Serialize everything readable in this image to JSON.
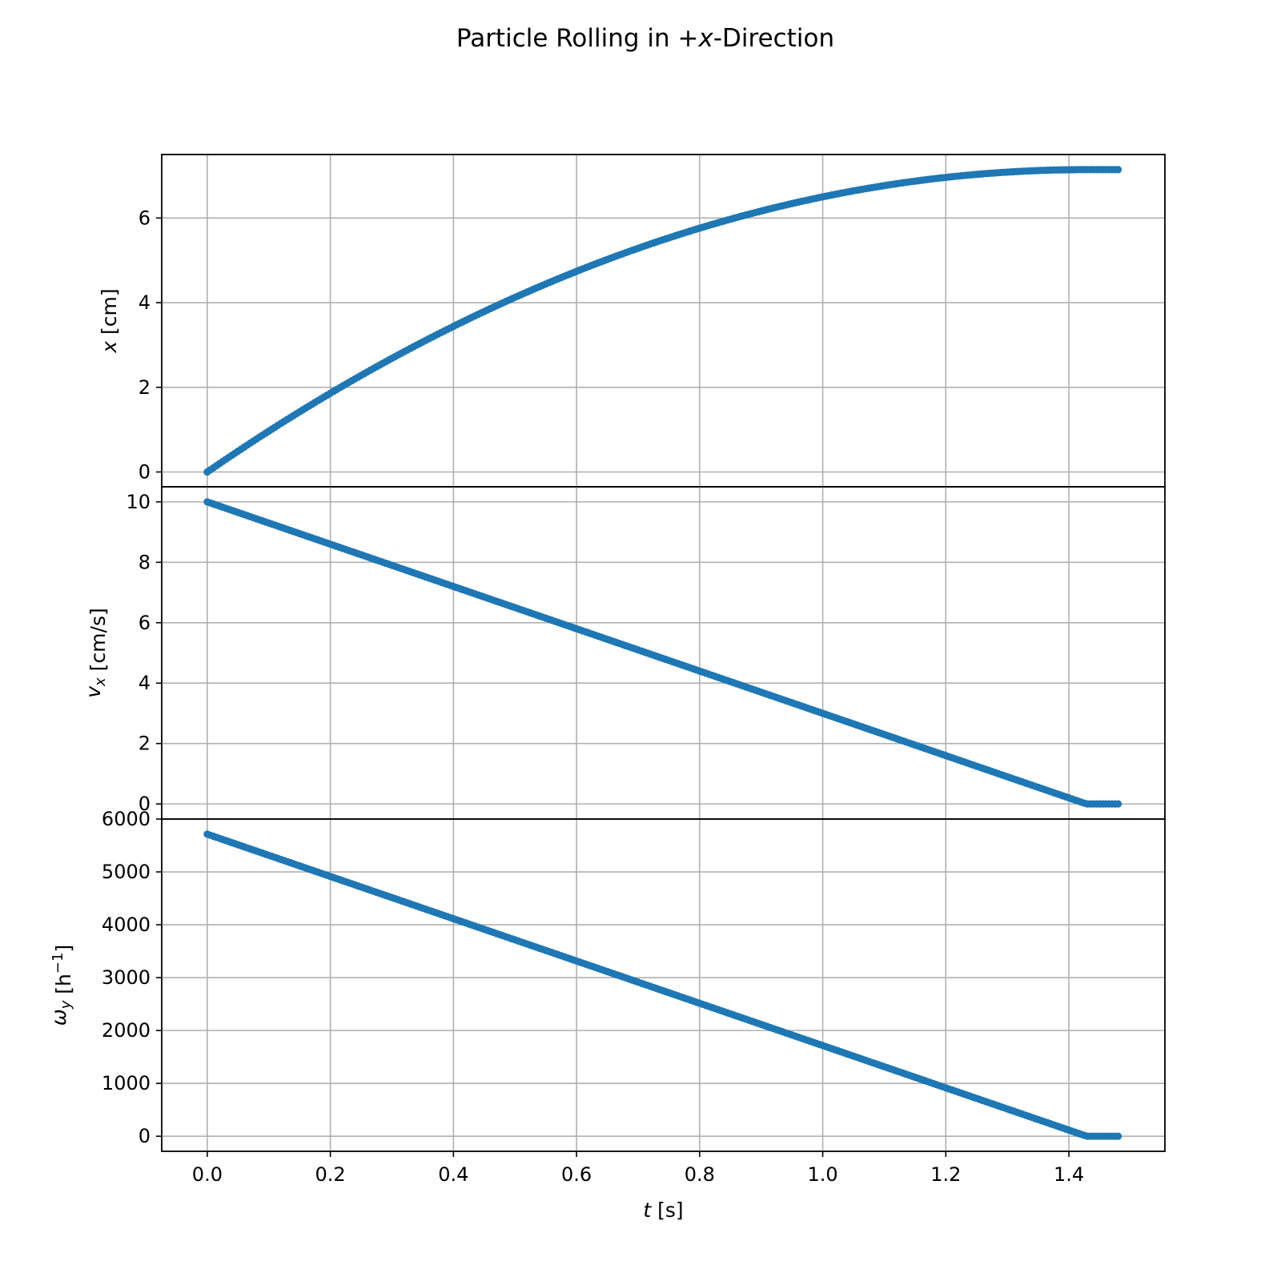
{
  "chart_data": {
    "type": "scatter",
    "title": "Particle Rolling in +x-Direction",
    "title_parts": [
      "Particle Rolling in +",
      "x",
      "-Direction"
    ],
    "color": "#1f77b4",
    "grid": true,
    "shared_x": {
      "label": "t [s]",
      "label_var": "t",
      "label_unit": " [s]",
      "lim": [
        -0.074,
        1.556
      ],
      "ticks": [
        0.0,
        0.2,
        0.4,
        0.6,
        0.8,
        1.0,
        1.2,
        1.4
      ],
      "tick_labels": [
        "0.0",
        "0.2",
        "0.4",
        "0.6",
        "0.8",
        "1.0",
        "1.2",
        "1.4"
      ]
    },
    "panels": [
      {
        "ylabel": "x [cm]",
        "ylabel_var": "x",
        "ylabel_sub": "",
        "ylabel_sup": "",
        "ylabel_unit": " [cm]",
        "ylim": [
          -0.35,
          7.5
        ],
        "ticks": [
          0,
          2,
          4,
          6
        ],
        "tick_labels": [
          "0",
          "2",
          "4",
          "6"
        ],
        "curve": "position"
      },
      {
        "ylabel": "v_x [cm/s]",
        "ylabel_var": "v",
        "ylabel_sub": "x",
        "ylabel_sup": "",
        "ylabel_unit": " [cm/s]",
        "ylim": [
          -0.5,
          10.5
        ],
        "ticks": [
          0,
          2,
          4,
          6,
          8,
          10
        ],
        "tick_labels": [
          "0",
          "2",
          "4",
          "6",
          "8",
          "10"
        ],
        "curve": "velocity"
      },
      {
        "ylabel": "ω_y [h⁻¹]",
        "ylabel_var": "ω",
        "ylabel_sub": "y",
        "ylabel_sup": "−1",
        "ylabel_unit_pre": " [h",
        "ylabel_unit_post": "]",
        "ylim": [
          -285,
          6000
        ],
        "ticks": [
          0,
          1000,
          2000,
          3000,
          4000,
          5000,
          6000
        ],
        "tick_labels": [
          "0",
          "1000",
          "2000",
          "3000",
          "4000",
          "5000",
          "6000"
        ],
        "curve": "angular_velocity"
      }
    ],
    "series": {
      "t_start": 0.0,
      "t_end": 1.48,
      "t_step": 0.005,
      "t_stop": 1.429,
      "x0": 0.0,
      "v0": 10.0,
      "deceleration": 7.0,
      "omega0": 5714,
      "x_final": 7.14
    }
  }
}
